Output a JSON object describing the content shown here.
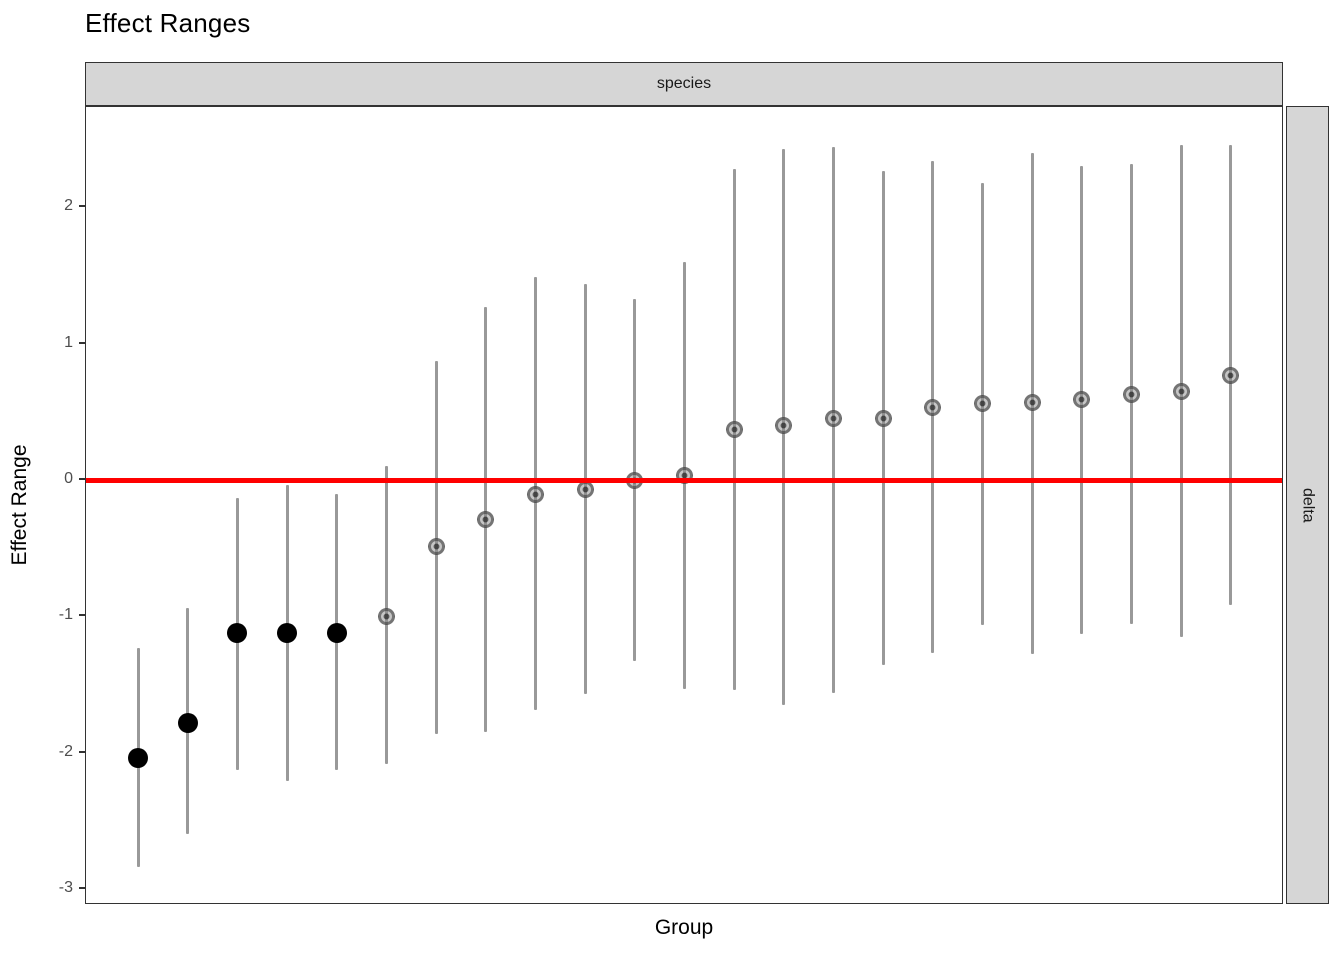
{
  "title": "Effect Ranges",
  "facets": {
    "top_strip": "species",
    "right_strip": "delta"
  },
  "axes": {
    "xlabel": "Group",
    "ylabel": "Effect Range",
    "y_tick_labels": [
      "2",
      "1",
      "0",
      "-1",
      "-2",
      "-3"
    ],
    "y_tick_values": [
      2,
      1,
      0,
      -1,
      -2,
      -3
    ],
    "x_tick_labels_visible": false
  },
  "colors": {
    "reference_line": "#ff0000",
    "strip_fill": "#d6d6d6",
    "panel_border": "#333333",
    "error_bar": "#999999",
    "point_significant": "#000000",
    "point_nonsignificant": "#808080"
  },
  "chart_data": {
    "type": "pointrange",
    "title": "Effect Ranges",
    "facet_row_label": "delta",
    "facet_col_label": "species",
    "xlabel": "Group",
    "ylabel": "Effect Range",
    "ylim": [
      -3.13,
      2.74
    ],
    "grid": false,
    "reference_line_y": 0,
    "n_groups": 23,
    "note": "x-axis group tick labels are not displayed in the figure",
    "points": [
      {
        "group": 1,
        "estimate": -2.04,
        "lower": -2.84,
        "upper": -1.23,
        "significant": true
      },
      {
        "group": 2,
        "estimate": -1.78,
        "lower": -2.6,
        "upper": -0.94,
        "significant": true
      },
      {
        "group": 3,
        "estimate": -1.12,
        "lower": -2.13,
        "upper": -0.13,
        "significant": true
      },
      {
        "group": 4,
        "estimate": -1.12,
        "lower": -2.21,
        "upper": -0.04,
        "significant": true
      },
      {
        "group": 5,
        "estimate": -1.12,
        "lower": -2.13,
        "upper": -0.1,
        "significant": true
      },
      {
        "group": 6,
        "estimate": -1.0,
        "lower": -2.08,
        "upper": 0.1,
        "significant": false
      },
      {
        "group": 7,
        "estimate": -0.49,
        "lower": -1.86,
        "upper": 0.87,
        "significant": false
      },
      {
        "group": 8,
        "estimate": -0.29,
        "lower": -1.85,
        "upper": 1.27,
        "significant": false
      },
      {
        "group": 9,
        "estimate": -0.11,
        "lower": -1.69,
        "upper": 1.49,
        "significant": false
      },
      {
        "group": 10,
        "estimate": -0.07,
        "lower": -1.57,
        "upper": 1.44,
        "significant": false
      },
      {
        "group": 11,
        "estimate": 0.0,
        "lower": -1.33,
        "upper": 1.33,
        "significant": false
      },
      {
        "group": 12,
        "estimate": 0.03,
        "lower": -1.53,
        "upper": 1.6,
        "significant": false
      },
      {
        "group": 13,
        "estimate": 0.37,
        "lower": -1.54,
        "upper": 2.28,
        "significant": false
      },
      {
        "group": 14,
        "estimate": 0.4,
        "lower": -1.65,
        "upper": 2.43,
        "significant": false
      },
      {
        "group": 15,
        "estimate": 0.45,
        "lower": -1.56,
        "upper": 2.44,
        "significant": false
      },
      {
        "group": 16,
        "estimate": 0.45,
        "lower": -1.36,
        "upper": 2.27,
        "significant": false
      },
      {
        "group": 17,
        "estimate": 0.53,
        "lower": -1.27,
        "upper": 2.34,
        "significant": false
      },
      {
        "group": 18,
        "estimate": 0.56,
        "lower": -1.06,
        "upper": 2.18,
        "significant": false
      },
      {
        "group": 19,
        "estimate": 0.57,
        "lower": -1.28,
        "upper": 2.4,
        "significant": false
      },
      {
        "group": 20,
        "estimate": 0.59,
        "lower": -1.13,
        "upper": 2.3,
        "significant": false
      },
      {
        "group": 21,
        "estimate": 0.63,
        "lower": -1.06,
        "upper": 2.32,
        "significant": false
      },
      {
        "group": 22,
        "estimate": 0.65,
        "lower": -1.15,
        "upper": 2.46,
        "significant": false
      },
      {
        "group": 23,
        "estimate": 0.77,
        "lower": -0.92,
        "upper": 2.46,
        "significant": false
      }
    ]
  }
}
